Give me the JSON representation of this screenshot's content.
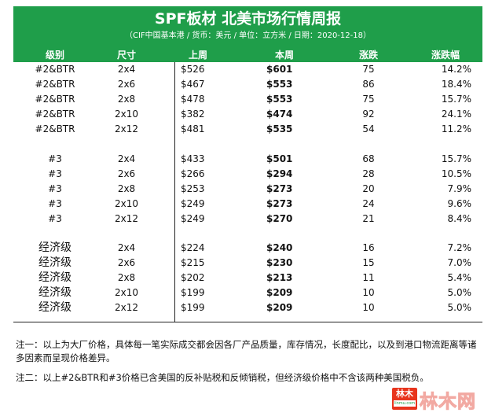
{
  "header": {
    "title": "SPF板材 北美市场行情周报",
    "subtitle": "（CIF中国基本港 / 货币：美元 / 单位：立方米 / 日期：2020-12-18）"
  },
  "columns": {
    "grade": "级别",
    "size": "尺寸",
    "last_week": "上周",
    "this_week": "本周",
    "change": "涨跌",
    "change_pct": "涨跌幅"
  },
  "rows": [
    {
      "grade": "#2&BTR",
      "size": "2x4",
      "last_week": "$526",
      "this_week": "$601",
      "change": "75",
      "change_pct": "14.2%"
    },
    {
      "grade": "#2&BTR",
      "size": "2x6",
      "last_week": "$467",
      "this_week": "$553",
      "change": "86",
      "change_pct": "18.4%"
    },
    {
      "grade": "#2&BTR",
      "size": "2x8",
      "last_week": "$478",
      "this_week": "$553",
      "change": "75",
      "change_pct": "15.7%"
    },
    {
      "grade": "#2&BTR",
      "size": "2x10",
      "last_week": "$382",
      "this_week": "$474",
      "change": "92",
      "change_pct": "24.1%"
    },
    {
      "grade": "#2&BTR",
      "size": "2x12",
      "last_week": "$481",
      "this_week": "$535",
      "change": "54",
      "change_pct": "11.2%"
    },
    {
      "grade": "#3",
      "size": "2x4",
      "last_week": "$433",
      "this_week": "$501",
      "change": "68",
      "change_pct": "15.7%"
    },
    {
      "grade": "#3",
      "size": "2x6",
      "last_week": "$266",
      "this_week": "$294",
      "change": "28",
      "change_pct": "10.5%"
    },
    {
      "grade": "#3",
      "size": "2x8",
      "last_week": "$253",
      "this_week": "$273",
      "change": "20",
      "change_pct": "7.9%"
    },
    {
      "grade": "#3",
      "size": "2x10",
      "last_week": "$249",
      "this_week": "$273",
      "change": "24",
      "change_pct": "9.6%"
    },
    {
      "grade": "#3",
      "size": "2x12",
      "last_week": "$249",
      "this_week": "$270",
      "change": "21",
      "change_pct": "8.4%"
    },
    {
      "grade": "经济级",
      "size": "2x4",
      "last_week": "$224",
      "this_week": "$240",
      "change": "16",
      "change_pct": "7.2%"
    },
    {
      "grade": "经济级",
      "size": "2x6",
      "last_week": "$215",
      "this_week": "$230",
      "change": "15",
      "change_pct": "7.0%"
    },
    {
      "grade": "经济级",
      "size": "2x8",
      "last_week": "$202",
      "this_week": "$213",
      "change": "11",
      "change_pct": "5.4%"
    },
    {
      "grade": "经济级",
      "size": "2x10",
      "last_week": "$199",
      "this_week": "$209",
      "change": "10",
      "change_pct": "5.0%"
    },
    {
      "grade": "经济级",
      "size": "2x12",
      "last_week": "$199",
      "this_week": "$209",
      "change": "10",
      "change_pct": "5.0%"
    }
  ],
  "notes": {
    "note1": "注一：以上为大厂价格，具体每一笔实际成交都会因各厂产品质量，库存情况，长度配比，以及到港口物流距离等诸多因素而呈现价格差异。",
    "note2": "注二：以上#2&BTR和#3价格已含美国的反补贴税和反倾销税，但经济级价格中不含该两种美国税负。"
  },
  "brand": {
    "logo_text": "林木",
    "logo_subtext": "linmu.com",
    "watermark": "林木网"
  },
  "colors": {
    "header_green": "#1f9e4a",
    "logo_red": "#e8341c"
  }
}
